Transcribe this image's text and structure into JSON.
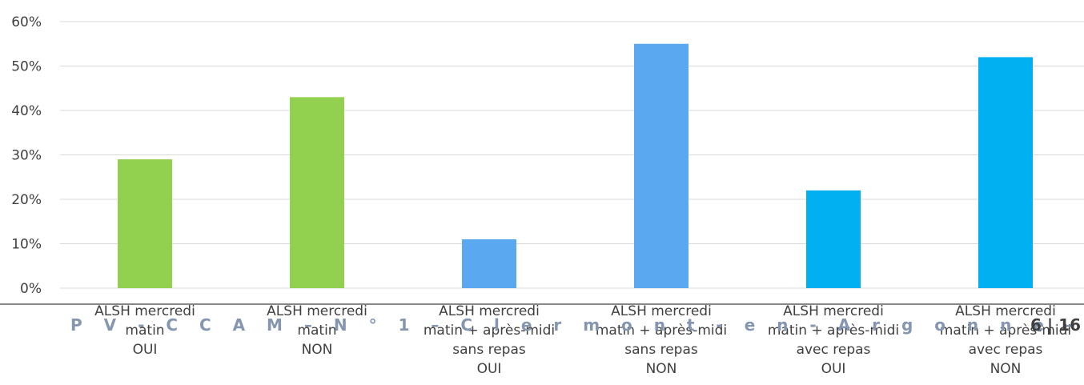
{
  "chart_data": {
    "type": "bar",
    "categories": [
      [
        "ALSH mercredi",
        "matin",
        "OUI"
      ],
      [
        "ALSH mercredi",
        "matin",
        "NON"
      ],
      [
        "ALSH mercredi",
        "matin + après-midi",
        "sans repas",
        "OUI"
      ],
      [
        "ALSH mercredi",
        "matin + après-midi",
        "sans repas",
        "NON"
      ],
      [
        "ALSH mercredi",
        "matin + après-midi",
        "avec repas",
        "OUI"
      ],
      [
        "ALSH mercredi",
        "matin + après-midi",
        "avec repas",
        "NON"
      ]
    ],
    "values": [
      29,
      43,
      11,
      55,
      22,
      52
    ],
    "bar_colors": [
      "#92d050",
      "#92d050",
      "#5aa9f0",
      "#5aa9f0",
      "#00b0f0",
      "#00b0f0"
    ],
    "ylim": [
      0,
      60
    ],
    "yticks": [
      {
        "value": 0,
        "label": "0%"
      },
      {
        "value": 10,
        "label": "10%"
      },
      {
        "value": 20,
        "label": "20%"
      },
      {
        "value": 30,
        "label": "30%"
      },
      {
        "value": 40,
        "label": "40%"
      },
      {
        "value": 50,
        "label": "50%"
      },
      {
        "value": 60,
        "label": "60%"
      }
    ],
    "grid": true,
    "title": "",
    "xlabel": "",
    "ylabel": ""
  },
  "footer": {
    "text": "P V   -   C C A M   – N ° 1   –   C l e r m o n t - e n - A r g o n n e   –   1 8 / 0 1 / 2 0 1 8   -   P a g e",
    "page_number": "6 | 16"
  }
}
